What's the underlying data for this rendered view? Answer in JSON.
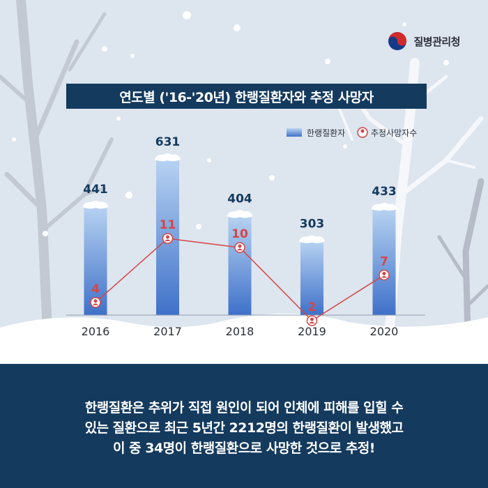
{
  "logo": {
    "text": "질병관리청"
  },
  "title": "연도별 ('16-'20년) 한랭질환자와 추정 사망자",
  "caption": {
    "lines": [
      "한랭질환은 추위가 직접 원인이 되어 인체에 피해를 입힐 수",
      "있는 질환으로 최근 5년간 2212명의 한랭질환이 발생했고",
      "이 중 34명이 한랭질환으로 사망한 것으로 추정!"
    ]
  },
  "colors": {
    "navy": "#143a5e",
    "bar_top": "#b9d4f2",
    "bar_bottom": "#3f71c9",
    "line": "#d64545",
    "label": "#143a5e",
    "death_label": "#d64545"
  },
  "chart_data": {
    "type": "bar",
    "categories": [
      "2016",
      "2017",
      "2018",
      "2019",
      "2020"
    ],
    "series": [
      {
        "name": "한랭질환자",
        "type": "bar",
        "values": [
          441,
          631,
          404,
          303,
          433
        ]
      },
      {
        "name": "추정사망자수",
        "type": "line",
        "values": [
          4,
          11,
          10,
          2,
          7
        ]
      }
    ],
    "legend_position": "top-right",
    "grid": false
  }
}
